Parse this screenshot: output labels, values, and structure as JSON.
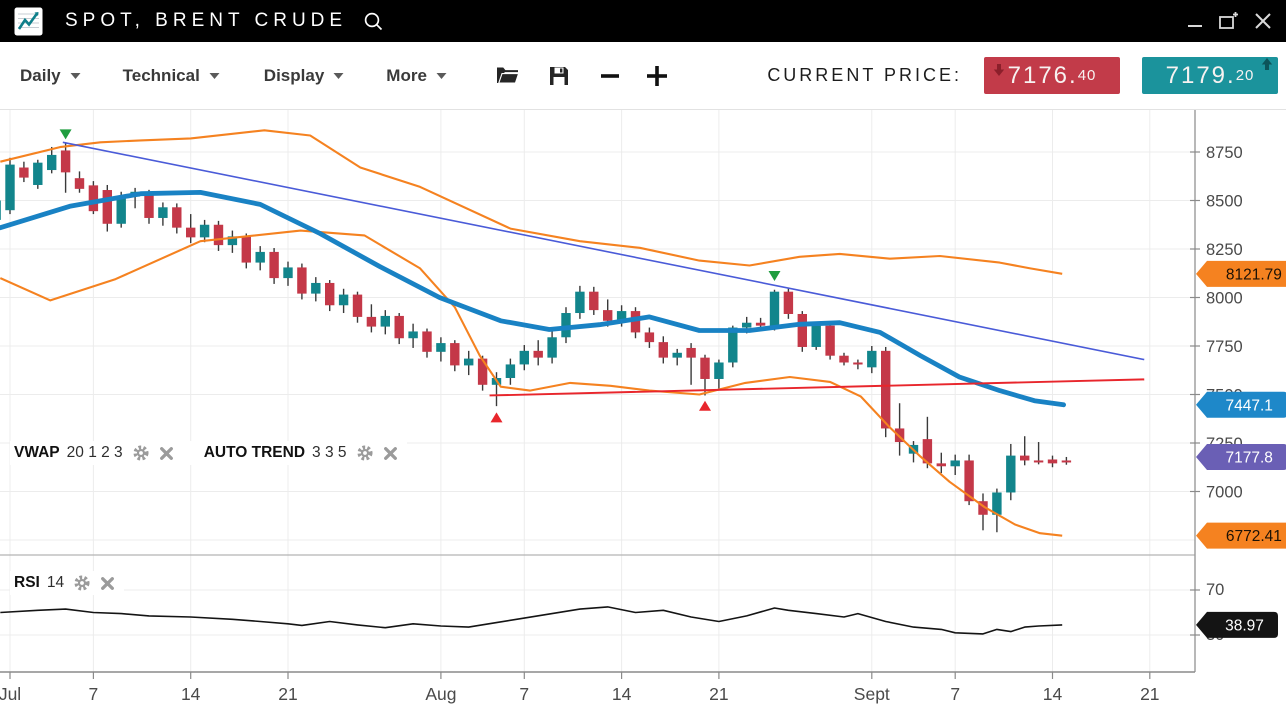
{
  "title_bar": {
    "title": "SPOT, BRENT CRUDE",
    "window_controls": {
      "minimize": "minimize",
      "popout": "pop-out",
      "close": "close"
    }
  },
  "toolbar": {
    "menus": [
      {
        "label": "Daily"
      },
      {
        "label": "Technical"
      },
      {
        "label": "Display"
      },
      {
        "label": "More"
      }
    ],
    "current_price_label": "CURRENT PRICE:",
    "bid": {
      "main": "7176.",
      "dec": "40",
      "direction": "down",
      "color": "#c23b49",
      "arrow_color": "#8c1f2b"
    },
    "ask": {
      "main": "7179.",
      "dec": "20",
      "direction": "up",
      "color": "#1b939c",
      "arrow_color": "#0c555b"
    }
  },
  "indicators": {
    "vwap": {
      "name": "VWAP",
      "params": "20 1 2 3"
    },
    "autotrend": {
      "name": "AUTO TREND",
      "params": "3 3 5"
    },
    "rsi": {
      "name": "RSI",
      "params": "14"
    }
  },
  "chart_data": {
    "type": "candlestick",
    "instrument": "SPOT, BRENT CRUDE",
    "interval": "Daily",
    "x_axis": {
      "ticks": [
        {
          "label": "Jul",
          "day": 0
        },
        {
          "label": "7",
          "day": 6
        },
        {
          "label": "14",
          "day": 13
        },
        {
          "label": "21",
          "day": 20
        },
        {
          "label": "Aug",
          "day": 31
        },
        {
          "label": "7",
          "day": 37
        },
        {
          "label": "14",
          "day": 44
        },
        {
          "label": "21",
          "day": 51
        },
        {
          "label": "Sept",
          "day": 62
        },
        {
          "label": "7",
          "day": 68
        },
        {
          "label": "14",
          "day": 75
        },
        {
          "label": "21",
          "day": 82
        }
      ]
    },
    "y_axis": {
      "tick_prices": [
        8750,
        8500,
        8250,
        8000,
        7750,
        7500,
        7250,
        7000
      ],
      "grid_extra": [
        6750
      ],
      "badges": [
        {
          "text": "8121.79",
          "price": 8121.79,
          "color": "#f58220",
          "text_color": "#1c1206"
        },
        {
          "text": "7447.1",
          "price": 7447.1,
          "color": "#1e88c9",
          "text_color": "#ffffff"
        },
        {
          "text": "7177.8",
          "price": 7177.8,
          "color": "#6a5fb5",
          "text_color": "#ffffff"
        },
        {
          "text": "6772.41",
          "price": 6772.41,
          "color": "#f58220",
          "text_color": "#1c1206"
        }
      ]
    },
    "rsi_axis": {
      "ticks": [
        {
          "label": "70",
          "value": 70
        },
        {
          "label": "30",
          "value": 30
        }
      ],
      "badge": {
        "text": "38.97",
        "value": 38.97,
        "color": "#141414",
        "text_color": "#ffffff"
      }
    },
    "candles_start_day": -1,
    "candles": [
      [
        8400,
        8530,
        8370,
        8500
      ],
      [
        8450,
        8720,
        8430,
        8685
      ],
      [
        8670,
        8700,
        8595,
        8618
      ],
      [
        8580,
        8710,
        8560,
        8695
      ],
      [
        8657,
        8776,
        8640,
        8735
      ],
      [
        8758,
        8800,
        8540,
        8645
      ],
      [
        8615,
        8650,
        8540,
        8560
      ],
      [
        8578,
        8600,
        8430,
        8445
      ],
      [
        8554,
        8580,
        8340,
        8380
      ],
      [
        8380,
        8545,
        8360,
        8520
      ],
      [
        8520,
        8565,
        8460,
        8545
      ],
      [
        8545,
        8555,
        8380,
        8410
      ],
      [
        8410,
        8490,
        8370,
        8465
      ],
      [
        8465,
        8485,
        8330,
        8360
      ],
      [
        8360,
        8430,
        8280,
        8310
      ],
      [
        8310,
        8400,
        8285,
        8375
      ],
      [
        8375,
        8395,
        8240,
        8270
      ],
      [
        8270,
        8345,
        8230,
        8315
      ],
      [
        8315,
        8330,
        8150,
        8180
      ],
      [
        8180,
        8265,
        8140,
        8235
      ],
      [
        8235,
        8255,
        8070,
        8100
      ],
      [
        8100,
        8185,
        8060,
        8155
      ],
      [
        8155,
        8175,
        7990,
        8020
      ],
      [
        8020,
        8105,
        7980,
        8075
      ],
      [
        8075,
        8090,
        7930,
        7960
      ],
      [
        7960,
        8045,
        7920,
        8015
      ],
      [
        8015,
        8030,
        7870,
        7900
      ],
      [
        7900,
        7965,
        7820,
        7850
      ],
      [
        7850,
        7935,
        7810,
        7905
      ],
      [
        7905,
        7920,
        7760,
        7790
      ],
      [
        7790,
        7865,
        7740,
        7825
      ],
      [
        7825,
        7840,
        7690,
        7720
      ],
      [
        7720,
        7795,
        7670,
        7765
      ],
      [
        7765,
        7780,
        7620,
        7650
      ],
      [
        7650,
        7725,
        7600,
        7685
      ],
      [
        7685,
        7700,
        7520,
        7550
      ],
      [
        7550,
        7615,
        7440,
        7585
      ],
      [
        7585,
        7685,
        7550,
        7655
      ],
      [
        7655,
        7755,
        7625,
        7725
      ],
      [
        7725,
        7780,
        7650,
        7690
      ],
      [
        7690,
        7825,
        7660,
        7795
      ],
      [
        7795,
        7950,
        7765,
        7920
      ],
      [
        7920,
        8060,
        7890,
        8030
      ],
      [
        8030,
        8055,
        7910,
        7935
      ],
      [
        7935,
        7990,
        7850,
        7880
      ],
      [
        7880,
        7960,
        7850,
        7930
      ],
      [
        7930,
        7950,
        7790,
        7820
      ],
      [
        7820,
        7845,
        7740,
        7770
      ],
      [
        7770,
        7800,
        7660,
        7690
      ],
      [
        7690,
        7735,
        7650,
        7715
      ],
      [
        7740,
        7765,
        7550,
        7690
      ],
      [
        7690,
        7705,
        7495,
        7580
      ],
      [
        7580,
        7680,
        7530,
        7665
      ],
      [
        7665,
        7855,
        7640,
        7845
      ],
      [
        7845,
        7900,
        7815,
        7870
      ],
      [
        7870,
        7895,
        7835,
        7855
      ],
      [
        7855,
        8040,
        7830,
        8030
      ],
      [
        8030,
        8050,
        7890,
        7915
      ],
      [
        7915,
        7930,
        7720,
        7745
      ],
      [
        7745,
        7860,
        7730,
        7855
      ],
      [
        7855,
        7870,
        7680,
        7700
      ],
      [
        7700,
        7715,
        7650,
        7665
      ],
      [
        7665,
        7680,
        7630,
        7655
      ],
      [
        7640,
        7750,
        7610,
        7725
      ],
      [
        7725,
        7745,
        7280,
        7325
      ],
      [
        7325,
        7455,
        7185,
        7255
      ],
      [
        7195,
        7260,
        7150,
        7240
      ],
      [
        7270,
        7385,
        7120,
        7145
      ],
      [
        7145,
        7200,
        7095,
        7130
      ],
      [
        7130,
        7190,
        7085,
        7160
      ],
      [
        7160,
        7190,
        6930,
        6950
      ],
      [
        6950,
        6990,
        6800,
        6880
      ],
      [
        6880,
        7015,
        6790,
        6995
      ],
      [
        6995,
        7245,
        6955,
        7185
      ],
      [
        7185,
        7285,
        7135,
        7160
      ],
      [
        7160,
        7255,
        7140,
        7150
      ],
      [
        7165,
        7185,
        7125,
        7145
      ],
      [
        7160,
        7178,
        7138,
        7155
      ]
    ],
    "ma": [
      [
        -0.7,
        8360
      ],
      [
        4.3,
        8470
      ],
      [
        9.4,
        8535
      ],
      [
        13.7,
        8542
      ],
      [
        18,
        8480
      ],
      [
        22.3,
        8330
      ],
      [
        26.6,
        8160
      ],
      [
        30.9,
        8000
      ],
      [
        35.3,
        7880
      ],
      [
        38.8,
        7835
      ],
      [
        42.4,
        7860
      ],
      [
        46,
        7900
      ],
      [
        49.6,
        7830
      ],
      [
        53.2,
        7830
      ],
      [
        56.8,
        7862
      ],
      [
        59.7,
        7870
      ],
      [
        62.6,
        7820
      ],
      [
        65.5,
        7700
      ],
      [
        68.3,
        7590
      ],
      [
        71.2,
        7520
      ],
      [
        73.7,
        7468
      ],
      [
        75.8,
        7447
      ]
    ],
    "bb_upper": [
      [
        -0.7,
        8700
      ],
      [
        3.6,
        8775
      ],
      [
        6.5,
        8800
      ],
      [
        9.4,
        8810
      ],
      [
        13,
        8820
      ],
      [
        18.3,
        8862
      ],
      [
        21.6,
        8835
      ],
      [
        25.2,
        8670
      ],
      [
        29.5,
        8570
      ],
      [
        36,
        8355
      ],
      [
        41,
        8290
      ],
      [
        45.3,
        8256
      ],
      [
        49.6,
        8190
      ],
      [
        53.2,
        8165
      ],
      [
        56.8,
        8210
      ],
      [
        59.7,
        8225
      ],
      [
        63.3,
        8200
      ],
      [
        66.9,
        8214
      ],
      [
        71.2,
        8180
      ],
      [
        73.4,
        8150
      ],
      [
        75.7,
        8122
      ]
    ],
    "bb_lower": [
      [
        -0.7,
        8100
      ],
      [
        2.9,
        7985
      ],
      [
        7.6,
        8095
      ],
      [
        13.7,
        8290
      ],
      [
        20.9,
        8345
      ],
      [
        25.5,
        8320
      ],
      [
        29.5,
        8150
      ],
      [
        32,
        7950
      ],
      [
        33.8,
        7700
      ],
      [
        35.3,
        7540
      ],
      [
        37.4,
        7520
      ],
      [
        40.3,
        7560
      ],
      [
        43.2,
        7545
      ],
      [
        46,
        7520
      ],
      [
        49.6,
        7500
      ],
      [
        52.9,
        7560
      ],
      [
        56.1,
        7590
      ],
      [
        59,
        7565
      ],
      [
        61.2,
        7490
      ],
      [
        63.3,
        7330
      ],
      [
        65.5,
        7180
      ],
      [
        67.6,
        7050
      ],
      [
        70.1,
        6920
      ],
      [
        72.3,
        6830
      ],
      [
        74.1,
        6785
      ],
      [
        75.7,
        6772
      ]
    ],
    "trendlines": [
      {
        "name": "auto-trend-resistance",
        "color_key": "trend_blue",
        "p1": [
          3.8,
          8800
        ],
        "p2": [
          81.6,
          7680
        ]
      },
      {
        "name": "auto-trend-support",
        "color_key": "trend_red",
        "p1": [
          34.5,
          7495
        ],
        "p2": [
          81.6,
          7578
        ]
      }
    ],
    "arrows_down": [
      [
        4,
        8815
      ],
      [
        55,
        8085
      ]
    ],
    "arrows_up": [
      [
        35,
        7408
      ],
      [
        50,
        7468
      ]
    ],
    "rsi": [
      [
        -0.7,
        50
      ],
      [
        2,
        52
      ],
      [
        4,
        53
      ],
      [
        6,
        50
      ],
      [
        8,
        49
      ],
      [
        10,
        47
      ],
      [
        13,
        46
      ],
      [
        16,
        44
      ],
      [
        18,
        42
      ],
      [
        20,
        40
      ],
      [
        21,
        38.5
      ],
      [
        23,
        42
      ],
      [
        25,
        39
      ],
      [
        27,
        36.5
      ],
      [
        29,
        40
      ],
      [
        31,
        38
      ],
      [
        33,
        37
      ],
      [
        35,
        41
      ],
      [
        37,
        45
      ],
      [
        39,
        49
      ],
      [
        41,
        53
      ],
      [
        43,
        55
      ],
      [
        45,
        50
      ],
      [
        47,
        52
      ],
      [
        49,
        46
      ],
      [
        51,
        42
      ],
      [
        53,
        47
      ],
      [
        55,
        54
      ],
      [
        56,
        52
      ],
      [
        58,
        49
      ],
      [
        60,
        46
      ],
      [
        61,
        49
      ],
      [
        63,
        42
      ],
      [
        65,
        37
      ],
      [
        67,
        35
      ],
      [
        68,
        32
      ],
      [
        70,
        31
      ],
      [
        71,
        35
      ],
      [
        72,
        33
      ],
      [
        73,
        37
      ],
      [
        74,
        38
      ],
      [
        75.7,
        38.97
      ]
    ],
    "colors": {
      "up": "#12858c",
      "down": "#c43848",
      "wick": "#3a3a3a",
      "ma": "#1982c4",
      "band": "#f58220",
      "trend_blue": "#4a5bd8",
      "trend_red": "#e8262c",
      "rsi": "#141414",
      "grid": "#ececec",
      "axis": "#8a8a8a",
      "tick_text": "#4a4a4a"
    },
    "layout": {
      "grid": true,
      "legend_position": "overlay-left",
      "price_axis": "right"
    }
  }
}
